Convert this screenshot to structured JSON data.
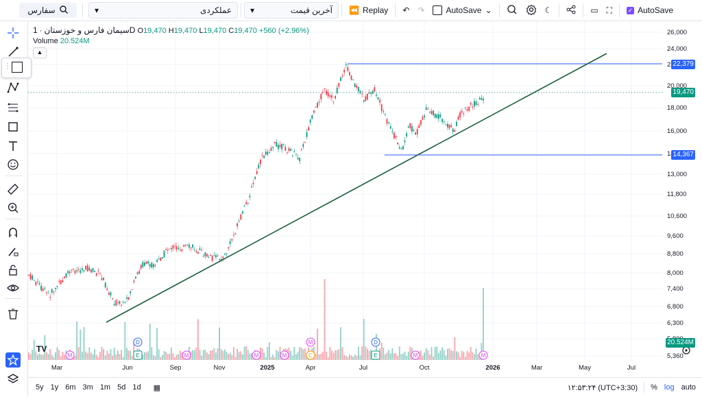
{
  "topbar": {
    "symbol_search": "سفارس",
    "indicator_select": "عملکردی",
    "price_select": "آخرین قیمت",
    "replay": "Replay",
    "autosave_dropdown": "AutoSave",
    "autosave_check": "AutoSave"
  },
  "legend": {
    "title": "سیمان فارس و خوزستان",
    "interval": "1D",
    "o_label": "O",
    "o_val": "19,470",
    "h_label": "H",
    "h_val": "19,470",
    "l_label": "L",
    "l_val": "19,470",
    "c_label": "C",
    "c_val": "19,470",
    "change": "+560 (+2.96%)",
    "volume_label": "Volume",
    "volume_val": "20.524M"
  },
  "price_axis": {
    "labels": [
      "26,000",
      "24,000",
      "22,000",
      "20,000",
      "18,000",
      "16,000",
      "14,000",
      "13,000",
      "11,800",
      "10,600",
      "9,600",
      "8,800",
      "8,000",
      "7,400",
      "6,800",
      "6,300",
      "5,800",
      "5,360"
    ],
    "tags": [
      {
        "text": "22,379",
        "color": "#2962ff"
      },
      {
        "text": "19,470",
        "color": "#089981"
      },
      {
        "text": "14,367",
        "color": "#2962ff"
      },
      {
        "text": "20.524M",
        "color": "#089981"
      }
    ]
  },
  "time_axis": [
    "Mar",
    "Jun",
    "Sep",
    "Nov",
    "2025",
    "Apr",
    "Jul",
    "Oct",
    "2026",
    "Mar",
    "May",
    "Jul"
  ],
  "events": [
    "M",
    "E",
    "D",
    "M",
    "M",
    "M",
    "M",
    "C",
    "D",
    "E",
    "M",
    "M"
  ],
  "bottombar": {
    "ranges": [
      "5y",
      "1y",
      "6m",
      "3m",
      "1m",
      "5d",
      "1d"
    ],
    "clock": "۱۲:۵۳:۲۴ (UTC+3:30)",
    "percent": "%",
    "log": "log",
    "auto": "auto"
  },
  "colors": {
    "up": "#089981",
    "down": "#f23645",
    "hline": "#2962ff",
    "trend": "#1b5e3b"
  }
}
